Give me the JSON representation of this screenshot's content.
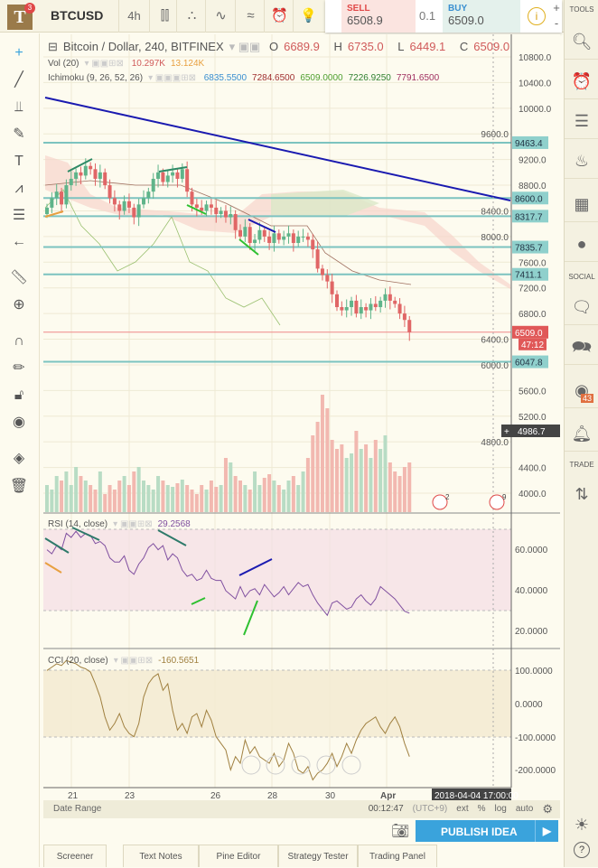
{
  "topbar": {
    "logo": "T",
    "notif_count": "3",
    "symbol": "BTCUSD",
    "interval": "4h",
    "sell_label": "SELL",
    "sell_price": "6508.9",
    "quantity": "0.1",
    "buy_label": "BUY",
    "buy_price": "6509.0",
    "info": "i",
    "plus": "+",
    "minus": "-"
  },
  "right_sidebar": {
    "tools_label": "TOOLS",
    "social_label": "SOCIAL",
    "trade_label": "TRADE",
    "stream_count": "43",
    "help": "?"
  },
  "legend": {
    "title": "Bitcoin / Dollar, 240, BITFINEX",
    "o_label": "O",
    "o": "6689.9",
    "h_label": "H",
    "h": "6735.0",
    "l_label": "L",
    "l": "6449.1",
    "c_label": "C",
    "c": "6509.0",
    "vol_name": "Vol (20)",
    "vol1": "10.297K",
    "vol2": "13.124K",
    "ichi_name": "Ichimoku (9, 26, 52, 26)",
    "ichi": [
      "6835.5500",
      "7284.6500",
      "6509.0000",
      "7226.9250",
      "7791.6500"
    ],
    "rsi_name": "RSI (14, close)",
    "rsi_val": "29.2568",
    "cci_name": "CCI (20, close)",
    "cci_val": "-160.5651"
  },
  "price_axis": [
    "10800.0",
    "10400.0",
    "10000.0",
    "9600.0",
    "9200.0",
    "8800.0",
    "8400.0",
    "8000.0",
    "7600.0",
    "7200.0",
    "6800.0",
    "6400.0",
    "6000.0",
    "5600.0",
    "5200.0",
    "4800.0",
    "4400.0",
    "4000.0"
  ],
  "price_axis_values": [
    10800,
    10400,
    10000,
    9600,
    9200,
    8800,
    8400,
    8000,
    7600,
    7200,
    6800,
    6400,
    6000,
    5600,
    5200,
    4800,
    4400,
    4000
  ],
  "hlines": [
    {
      "v": 9463.4,
      "t": "9463.4"
    },
    {
      "v": 8600.0,
      "t": "8600.0"
    },
    {
      "v": 8317.7,
      "t": "8317.7"
    },
    {
      "v": 7835.7,
      "t": "7835.7"
    },
    {
      "v": 7411.1,
      "t": "7411.1"
    },
    {
      "v": 6047.8,
      "t": "6047.8"
    }
  ],
  "last_price": {
    "v": 6509.0,
    "t": "6509.0",
    "countdown": "47:12"
  },
  "crosshair_price": "4986.7",
  "rsi_axis": [
    "60.0000",
    "40.0000",
    "20.0000"
  ],
  "cci_axis": [
    "100.0000",
    "0.0000",
    "-100.0000",
    "-200.0000"
  ],
  "dates": [
    "21",
    "23",
    "26",
    "28",
    "30",
    "Apr"
  ],
  "crosshair_date": "2018-04-04 17:00:00",
  "event_badges": [
    "2",
    "9"
  ],
  "bottom": {
    "date_range": "Date Range",
    "time": "00:12:47",
    "tz": "(UTC+9)",
    "ext": "ext",
    "pct": "%",
    "log": "log",
    "auto": "auto"
  },
  "publish": "PUBLISH IDEA",
  "tabs": [
    "Screener",
    "Text Notes",
    "Pine Editor",
    "Strategy Tester",
    "Trading Panel"
  ],
  "colors": {
    "up": "#5fb48a",
    "down": "#e06666",
    "hline": "#7cc3c0",
    "trend": "#1a1ab0",
    "accent": "#3aa3dc"
  },
  "chart_data": {
    "type": "candlestick",
    "closes": [
      8450,
      8600,
      8700,
      8500,
      8800,
      8900,
      9000,
      8950,
      9100,
      9050,
      8900,
      9000,
      8800,
      8600,
      8500,
      8400,
      8550,
      8450,
      8300,
      8500,
      8600,
      8700,
      8900,
      9000,
      8850,
      8950,
      9000,
      8900,
      9050,
      8700,
      8500,
      8450,
      8400,
      8500,
      8450,
      8350,
      8400,
      8300,
      8350,
      8100,
      8000,
      8150,
      7900,
      7950,
      8100,
      8000,
      7900,
      8050,
      7950,
      8000,
      8050,
      7900,
      8000,
      8000,
      7950,
      7800,
      7500,
      7400,
      7300,
      7100,
      6900,
      6850,
      6900,
      7000,
      6800,
      6900,
      6850,
      6950,
      6900,
      7000,
      7100,
      7000,
      6950,
      6800,
      6700,
      6509
    ],
    "volume": [
      30,
      25,
      40,
      35,
      45,
      30,
      50,
      40,
      35,
      30,
      25,
      45,
      20,
      30,
      25,
      35,
      40,
      30,
      45,
      50,
      35,
      30,
      25,
      40,
      35,
      30,
      28,
      32,
      36,
      30,
      25,
      20,
      30,
      25,
      35,
      28,
      30,
      60,
      55,
      40,
      35,
      30,
      25,
      45,
      30,
      38,
      42,
      35,
      30,
      25,
      35,
      40,
      30,
      45,
      60,
      85,
      100,
      130,
      115,
      80,
      70,
      75,
      60,
      65,
      90,
      70,
      75,
      60,
      80,
      70,
      85,
      55,
      45,
      40,
      50,
      55
    ],
    "rsi": [
      60,
      58,
      62,
      60,
      68,
      66,
      69,
      66,
      68,
      67,
      63,
      64,
      62,
      56,
      54,
      54,
      57,
      50,
      48,
      53,
      56,
      61,
      63,
      60,
      62,
      55,
      58,
      56,
      50,
      47,
      48,
      45,
      46,
      50,
      46,
      45,
      45,
      40,
      38,
      36,
      42,
      37,
      40,
      41,
      38,
      43,
      40,
      37,
      39,
      42,
      38,
      41,
      44,
      42,
      43,
      38,
      34,
      31,
      28,
      34,
      35,
      33,
      31,
      32,
      36,
      38,
      35,
      33,
      36,
      42,
      40,
      38,
      36,
      33,
      30,
      29
    ],
    "cci": [
      100,
      110,
      120,
      115,
      130,
      125,
      120,
      110,
      105,
      95,
      60,
      20,
      -40,
      -80,
      -60,
      -30,
      -70,
      -90,
      -100,
      -60,
      20,
      60,
      80,
      90,
      40,
      60,
      -20,
      -80,
      -60,
      -90,
      -40,
      -30,
      -70,
      -20,
      -50,
      -100,
      -120,
      -140,
      -200,
      -160,
      -180,
      -110,
      -150,
      -130,
      -160,
      -170,
      -180,
      -150,
      -190,
      -170,
      -120,
      -150,
      -200,
      -210,
      -190,
      -230,
      -210,
      -200,
      -180,
      -150,
      -190,
      -160,
      -120,
      -150,
      -110,
      -80,
      -60,
      -50,
      -40,
      -70,
      -90,
      -60,
      -40,
      -70,
      -120,
      -160
    ]
  }
}
